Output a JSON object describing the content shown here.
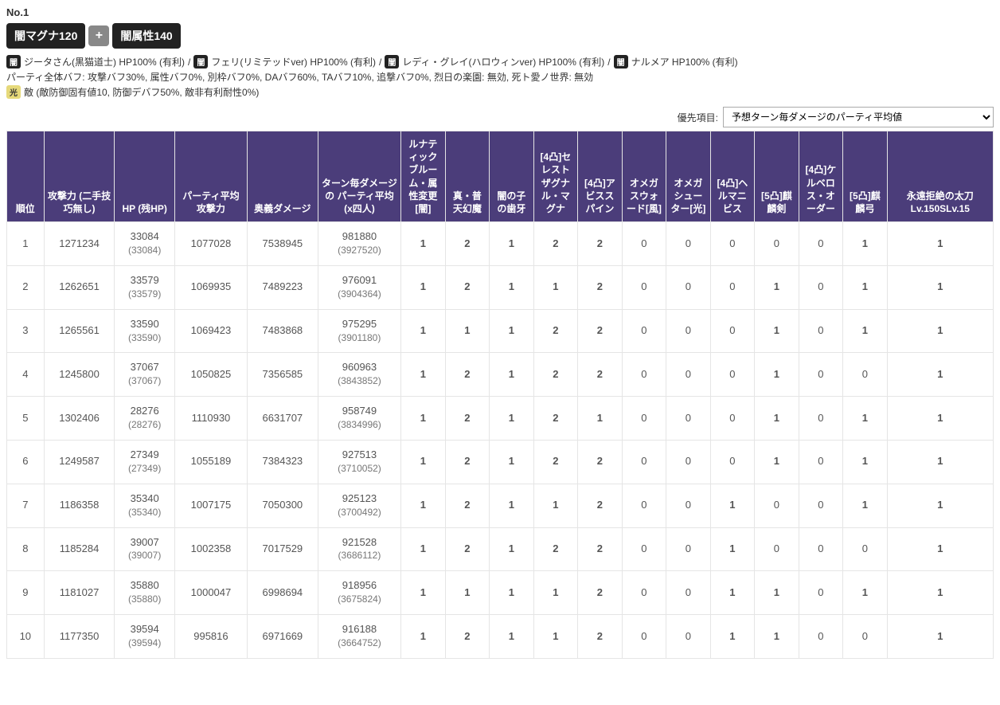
{
  "heading": "No.1",
  "badges": {
    "left": "闇マグナ120",
    "plus": "+",
    "right": "闇属性140"
  },
  "characters": [
    {
      "elem": "闇",
      "text": "ジータさん(黒猫道士) HP100% (有利)"
    },
    {
      "elem": "闇",
      "text": "フェリ(リミテッドver) HP100% (有利)"
    },
    {
      "elem": "闇",
      "text": "レディ・グレイ(ハロウィンver) HP100% (有利)"
    },
    {
      "elem": "闇",
      "text": "ナルメア HP100% (有利)"
    }
  ],
  "char_sep": " / ",
  "buffs_line": "パーティ全体バフ: 攻撃バフ30%, 属性バフ0%, 別枠バフ0%, DAバフ60%, TAバフ10%, 追撃バフ0%, 烈日の楽園: 無効, 死ト愛ノ世界: 無効",
  "enemy": {
    "elem": "光",
    "text": "敵 (敵防御固有値10, 防御デバフ50%, 敵非有利耐性0%)"
  },
  "priority": {
    "label": "優先項目:",
    "options": [
      "予想ターン毎ダメージのパーティ平均値"
    ],
    "selected": "予想ターン毎ダメージのパーティ平均値"
  },
  "columns": [
    "順位",
    "攻撃力 (二手技巧無し)",
    "HP (残HP)",
    "パーティ平均攻撃力",
    "奥義ダメージ",
    "ターン毎ダメージの パーティ平均 (x四人)",
    "ルナティックブルーム・属性変更[闇]",
    "真・普天幻魔",
    "闇の子の歯牙",
    "[4凸]セレストザグナル・マグナ",
    "[4凸]アビススパイン",
    "オメガスウォード[風]",
    "オメガシューター[光]",
    "[4凸]ヘルマニビス",
    "[5凸]麒麟剣",
    "[4凸]ケルベロス・オーダー",
    "[5凸]麒麟弓",
    "永遠拒絶の太刀 Lv.150SLv.15"
  ],
  "col_classes": [
    "col-rank",
    "col-atk",
    "col-hp",
    "col-pavg",
    "col-ougi",
    "col-turn",
    "col-w",
    "col-w",
    "col-w",
    "col-w",
    "col-w",
    "col-w",
    "col-w",
    "col-w",
    "col-w",
    "col-w",
    "col-w",
    "col-last"
  ],
  "rows": [
    {
      "rank": 1,
      "atk": "1271234",
      "hp": "33084",
      "hp_rem": "(33084)",
      "pavg": "1077028",
      "ougi": "7538945",
      "turn": "981880",
      "turn_sub": "(3927520)",
      "w": [
        1,
        2,
        1,
        2,
        2,
        0,
        0,
        0,
        0,
        0,
        1,
        1
      ]
    },
    {
      "rank": 2,
      "atk": "1262651",
      "hp": "33579",
      "hp_rem": "(33579)",
      "pavg": "1069935",
      "ougi": "7489223",
      "turn": "976091",
      "turn_sub": "(3904364)",
      "w": [
        1,
        2,
        1,
        1,
        2,
        0,
        0,
        0,
        1,
        0,
        1,
        1
      ]
    },
    {
      "rank": 3,
      "atk": "1265561",
      "hp": "33590",
      "hp_rem": "(33590)",
      "pavg": "1069423",
      "ougi": "7483868",
      "turn": "975295",
      "turn_sub": "(3901180)",
      "w": [
        1,
        1,
        1,
        2,
        2,
        0,
        0,
        0,
        1,
        0,
        1,
        1
      ]
    },
    {
      "rank": 4,
      "atk": "1245800",
      "hp": "37067",
      "hp_rem": "(37067)",
      "pavg": "1050825",
      "ougi": "7356585",
      "turn": "960963",
      "turn_sub": "(3843852)",
      "w": [
        1,
        2,
        1,
        2,
        2,
        0,
        0,
        0,
        1,
        0,
        0,
        1
      ]
    },
    {
      "rank": 5,
      "atk": "1302406",
      "hp": "28276",
      "hp_rem": "(28276)",
      "pavg": "1110930",
      "ougi": "6631707",
      "turn": "958749",
      "turn_sub": "(3834996)",
      "w": [
        1,
        2,
        1,
        2,
        1,
        0,
        0,
        0,
        1,
        0,
        1,
        1
      ]
    },
    {
      "rank": 6,
      "atk": "1249587",
      "hp": "27349",
      "hp_rem": "(27349)",
      "pavg": "1055189",
      "ougi": "7384323",
      "turn": "927513",
      "turn_sub": "(3710052)",
      "w": [
        1,
        2,
        1,
        2,
        2,
        0,
        0,
        0,
        1,
        0,
        1,
        1
      ]
    },
    {
      "rank": 7,
      "atk": "1186358",
      "hp": "35340",
      "hp_rem": "(35340)",
      "pavg": "1007175",
      "ougi": "7050300",
      "turn": "925123",
      "turn_sub": "(3700492)",
      "w": [
        1,
        2,
        1,
        1,
        2,
        0,
        0,
        1,
        0,
        0,
        1,
        1
      ]
    },
    {
      "rank": 8,
      "atk": "1185284",
      "hp": "39007",
      "hp_rem": "(39007)",
      "pavg": "1002358",
      "ougi": "7017529",
      "turn": "921528",
      "turn_sub": "(3686112)",
      "w": [
        1,
        2,
        1,
        2,
        2,
        0,
        0,
        1,
        0,
        0,
        0,
        1
      ]
    },
    {
      "rank": 9,
      "atk": "1181027",
      "hp": "35880",
      "hp_rem": "(35880)",
      "pavg": "1000047",
      "ougi": "6998694",
      "turn": "918956",
      "turn_sub": "(3675824)",
      "w": [
        1,
        1,
        1,
        1,
        2,
        0,
        0,
        1,
        1,
        0,
        1,
        1
      ]
    },
    {
      "rank": 10,
      "atk": "1177350",
      "hp": "39594",
      "hp_rem": "(39594)",
      "pavg": "995816",
      "ougi": "6971669",
      "turn": "916188",
      "turn_sub": "(3664752)",
      "w": [
        1,
        2,
        1,
        1,
        2,
        0,
        0,
        1,
        1,
        0,
        0,
        1
      ]
    }
  ],
  "colors": {
    "header_bg": "#4b3d7a",
    "header_fg": "#ffffff",
    "cell_border": "#e5e5e5",
    "weapon_nonzero": "#1a4e8a",
    "weapon_zero": "#aaaaaa"
  }
}
